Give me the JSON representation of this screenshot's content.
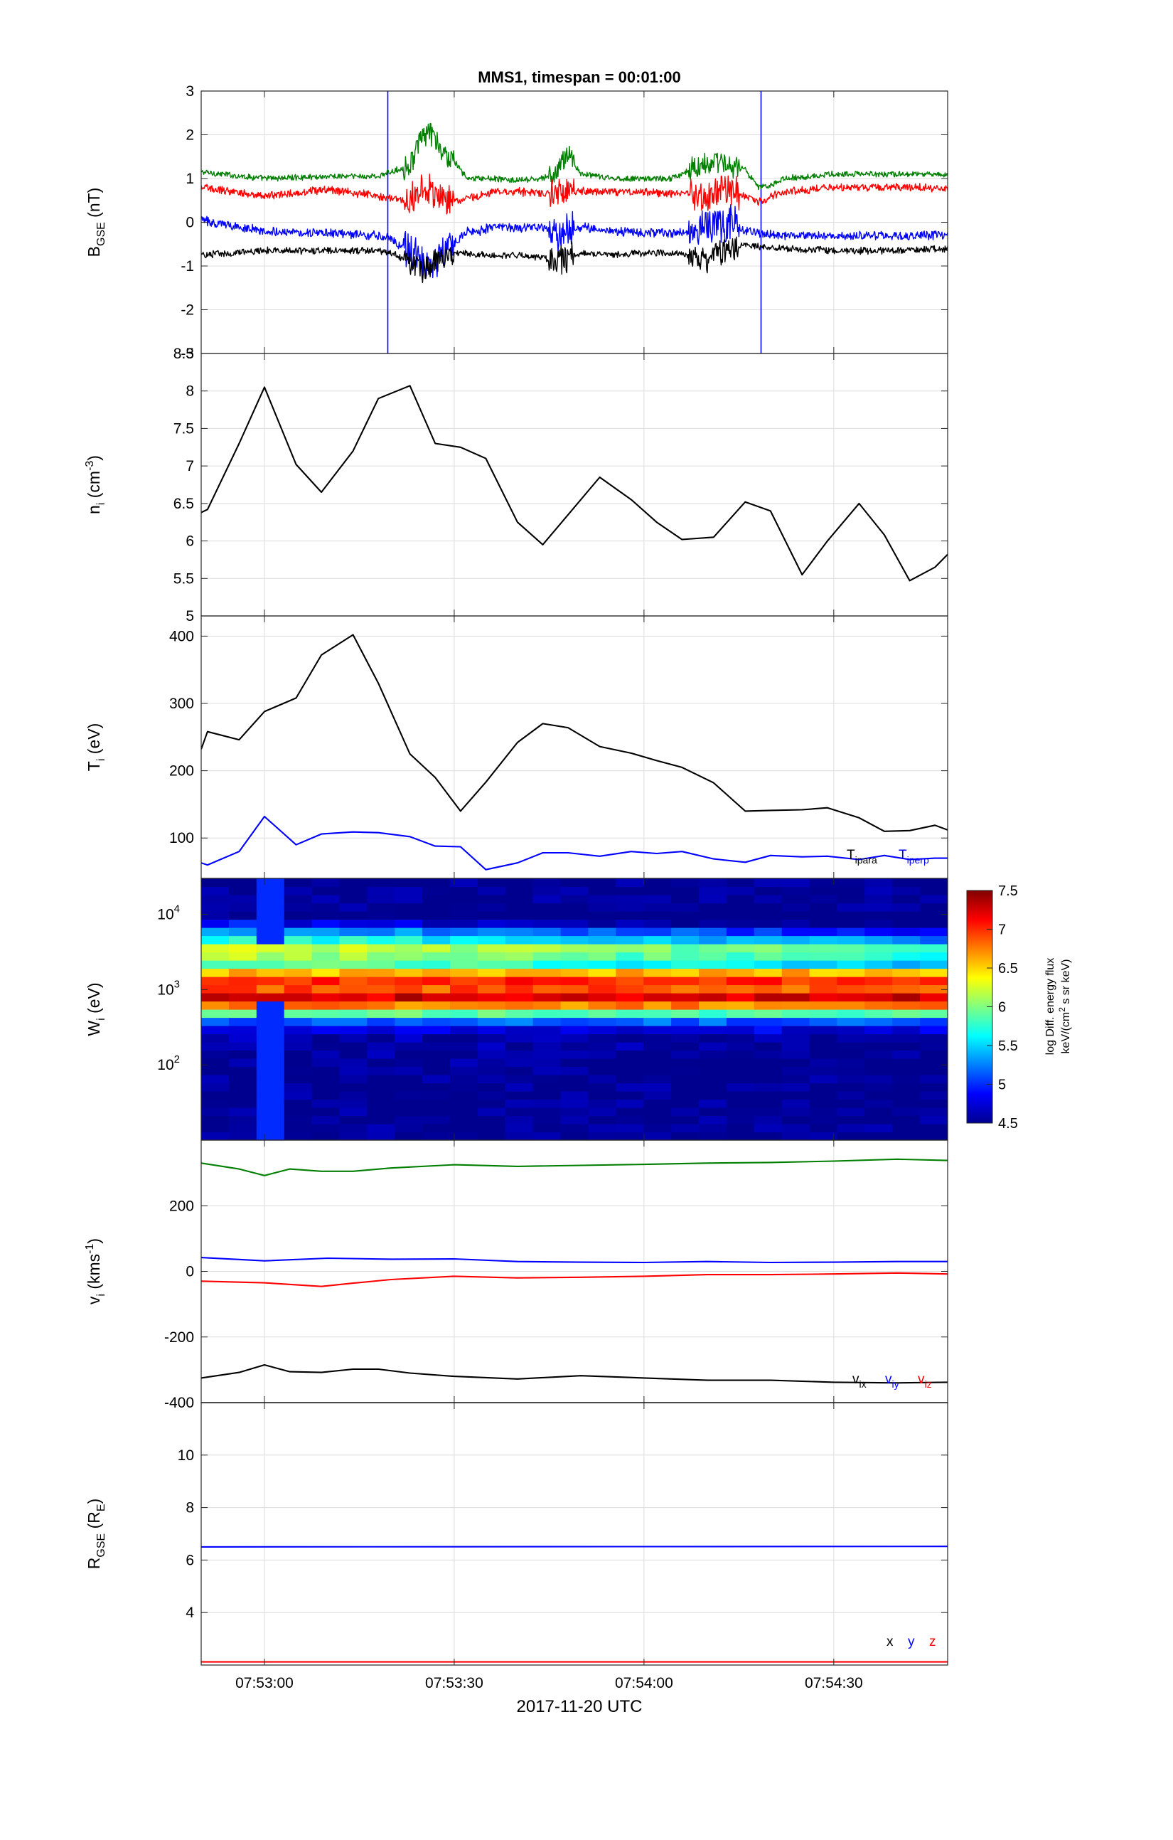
{
  "figure": {
    "title": "MMS1, timespan = 00:01:00",
    "xlabel": "2017-11-20 UTC",
    "x_tick_labels": [
      "07:53:00",
      "07:53:30",
      "07:54:00",
      "07:54:30"
    ],
    "x_tick_values": [
      10,
      40,
      70,
      100
    ],
    "x_range": [
      0,
      118
    ],
    "x_unit": "seconds after 07:52:50"
  },
  "chart_data": [
    {
      "id": "b",
      "type": "line",
      "ylabel": "B",
      "ylabel_sub": "GSE",
      "ylabel_unit": " (nT)",
      "ylim": [
        -3,
        3
      ],
      "yticks": [
        -3,
        -2,
        -1,
        0,
        1,
        2,
        3
      ],
      "ytick_labels": [
        "-3",
        "-2",
        "-1",
        "0",
        "1",
        "2",
        "3"
      ],
      "grid": true,
      "vlines": [
        {
          "x": 29.5,
          "color": "#0000ff"
        },
        {
          "x": 88.5,
          "color": "#0000ff"
        }
      ],
      "series": [
        {
          "color": "#007f00",
          "noise": 0.06,
          "x": [
            0,
            10,
            20,
            28,
            30,
            33,
            34,
            36,
            38,
            40,
            42,
            44,
            46,
            50,
            54,
            56,
            58,
            60,
            65,
            70,
            74,
            76,
            80,
            84,
            86,
            88,
            90,
            92,
            100,
            110,
            118
          ],
          "y": [
            1.15,
            1.0,
            1.05,
            1.05,
            1.15,
            1.3,
            1.7,
            2.1,
            1.6,
            1.4,
            1.0,
            1.0,
            1.0,
            0.95,
            1.0,
            1.1,
            1.6,
            1.1,
            1.0,
            1.0,
            1.0,
            1.1,
            1.4,
            1.3,
            1.2,
            0.8,
            0.85,
            1.0,
            1.1,
            1.1,
            1.1
          ]
        },
        {
          "color": "#ff0000",
          "noise": 0.08,
          "x": [
            0,
            10,
            20,
            28,
            30,
            33,
            35,
            37,
            40,
            42,
            44,
            46,
            50,
            54,
            57,
            60,
            65,
            70,
            75,
            80,
            84,
            86,
            88,
            92,
            100,
            110,
            118
          ],
          "y": [
            0.8,
            0.6,
            0.75,
            0.6,
            0.55,
            0.5,
            0.9,
            0.6,
            0.5,
            0.55,
            0.6,
            0.7,
            0.7,
            0.65,
            0.7,
            0.7,
            0.7,
            0.7,
            0.65,
            0.6,
            0.75,
            0.6,
            0.45,
            0.7,
            0.8,
            0.8,
            0.78
          ]
        },
        {
          "color": "#0000ff",
          "noise": 0.09,
          "x": [
            0,
            10,
            20,
            28,
            30,
            32,
            34,
            36,
            38,
            40,
            42,
            44,
            46,
            50,
            54,
            56,
            58,
            60,
            65,
            70,
            75,
            78,
            80,
            84,
            86,
            88,
            92,
            100,
            110,
            118
          ],
          "y": [
            0.05,
            -0.2,
            -0.25,
            -0.3,
            -0.4,
            -0.6,
            -0.8,
            -1.0,
            -0.8,
            -0.5,
            -0.2,
            -0.2,
            -0.1,
            -0.15,
            -0.1,
            -0.3,
            -0.2,
            -0.1,
            -0.2,
            -0.25,
            -0.25,
            -0.2,
            -0.1,
            0.0,
            -0.2,
            -0.25,
            -0.3,
            -0.3,
            -0.3,
            -0.3
          ]
        },
        {
          "color": "#000000",
          "noise": 0.07,
          "x": [
            0,
            10,
            20,
            28,
            30,
            33,
            35,
            37,
            40,
            42,
            44,
            46,
            50,
            54,
            56,
            58,
            60,
            65,
            70,
            75,
            78,
            80,
            82,
            84,
            86,
            88,
            92,
            100,
            110,
            118
          ],
          "y": [
            -0.75,
            -0.65,
            -0.65,
            -0.65,
            -0.7,
            -0.9,
            -1.1,
            -0.9,
            -0.7,
            -0.7,
            -0.75,
            -0.75,
            -0.75,
            -0.8,
            -0.9,
            -0.8,
            -0.7,
            -0.75,
            -0.7,
            -0.7,
            -0.8,
            -0.9,
            -0.75,
            -0.6,
            -0.5,
            -0.55,
            -0.6,
            -0.65,
            -0.65,
            -0.6
          ]
        }
      ],
      "legend": []
    },
    {
      "id": "n",
      "type": "line",
      "ylabel": "n",
      "ylabel_sub": "i",
      "ylabel_unit": " (cm",
      "ylabel_sup": "-3",
      "ylabel_end": ")",
      "ylim": [
        5,
        8.5
      ],
      "yticks": [
        5,
        5.5,
        6,
        6.5,
        7,
        7.5,
        8,
        8.5
      ],
      "ytick_labels": [
        "5",
        "5.5",
        "6",
        "6.5",
        "7",
        "7.5",
        "8",
        "8.5"
      ],
      "grid": true,
      "series": [
        {
          "color": "#000000",
          "x": [
            0,
            1,
            6,
            10,
            15,
            19,
            24,
            28,
            33,
            37,
            41,
            45,
            50,
            54,
            58,
            63,
            68,
            72,
            76,
            81,
            86,
            90,
            95,
            99,
            104,
            108,
            112,
            116,
            118
          ],
          "y": [
            6.38,
            6.42,
            7.3,
            8.05,
            7.02,
            6.65,
            7.2,
            7.9,
            8.07,
            7.3,
            7.25,
            7.1,
            6.25,
            5.95,
            6.35,
            6.85,
            6.55,
            6.25,
            6.02,
            6.05,
            6.52,
            6.4,
            5.55,
            6.0,
            6.5,
            6.08,
            5.47,
            5.65,
            5.82
          ]
        }
      ],
      "legend": []
    },
    {
      "id": "t",
      "type": "line",
      "ylabel": "T",
      "ylabel_sub": "i",
      "ylabel_unit": " (eV)",
      "ylim": [
        40,
        430
      ],
      "yticks": [
        100,
        200,
        300,
        400
      ],
      "ytick_labels": [
        "100",
        "200",
        "300",
        "400"
      ],
      "grid": true,
      "series": [
        {
          "name": "T",
          "name_sub": "ipara",
          "color": "#000000",
          "x": [
            0,
            1,
            6,
            10,
            15,
            19,
            24,
            28,
            33,
            37,
            41,
            45,
            50,
            54,
            58,
            63,
            68,
            72,
            76,
            81,
            86,
            90,
            95,
            99,
            104,
            108,
            112,
            116,
            118
          ],
          "y": [
            232,
            258,
            246,
            288,
            308,
            372,
            402,
            330,
            225,
            190,
            140,
            183,
            242,
            270,
            264,
            236,
            226,
            215,
            205,
            182,
            140,
            141,
            142,
            145,
            130,
            110,
            111,
            119,
            112
          ]
        },
        {
          "name": "T",
          "name_sub": "iperp",
          "color": "#0000ff",
          "x": [
            0,
            1,
            6,
            10,
            15,
            19,
            24,
            28,
            33,
            37,
            41,
            45,
            50,
            54,
            58,
            63,
            68,
            72,
            76,
            81,
            86,
            90,
            95,
            99,
            104,
            108,
            112,
            116,
            118
          ],
          "y": [
            63,
            60,
            80,
            132,
            90,
            106,
            109,
            108,
            102,
            88,
            87,
            53,
            63,
            78,
            78,
            73,
            80,
            77,
            80,
            69,
            64,
            74,
            72,
            73,
            68,
            74,
            68,
            70,
            70
          ]
        }
      ],
      "legend": [
        {
          "text": "T",
          "sub": "ipara",
          "color": "#000000"
        },
        {
          "text": "T",
          "sub": "iperp",
          "color": "#0000ff"
        }
      ]
    },
    {
      "id": "w",
      "type": "heatmap",
      "ylabel": "W",
      "ylabel_sub": "i",
      "ylabel_unit": " (eV)",
      "yscale": "log",
      "ylim": [
        10,
        30000
      ],
      "ytick_labels": [
        "10",
        "10",
        "10"
      ],
      "ytick_sups": [
        "2",
        "3",
        "4"
      ],
      "ytick_values": [
        100,
        1000,
        10000
      ],
      "time_bins": 27,
      "energy_bins": 32,
      "colorbar": {
        "range": [
          4.5,
          7.5
        ],
        "ticks": [
          4.5,
          5,
          5.5,
          6,
          6.5,
          7,
          7.5
        ],
        "tick_labels": [
          "4.5",
          "5",
          "5.5",
          "6",
          "6.5",
          "7",
          "7.5"
        ],
        "label_line1": "log Diff. energy flux",
        "label_line2": "keV/(cm",
        "label_sup": "2",
        "label_line2_end": " s sr keV)"
      },
      "profile": {
        "log_e": [
          1.0,
          1.5,
          2.0,
          2.4,
          2.55,
          2.65,
          2.75,
          2.85,
          2.95,
          3.05,
          3.15,
          3.25,
          3.35,
          3.45,
          3.55,
          3.65,
          3.75,
          3.85,
          3.95,
          4.05,
          4.5
        ],
        "level": [
          4.5,
          4.5,
          4.5,
          4.6,
          5.0,
          5.6,
          6.4,
          7.2,
          7.3,
          6.6,
          7.2,
          6.4,
          5.9,
          6.2,
          6.3,
          5.8,
          5.5,
          5.0,
          4.6,
          4.5,
          4.5
        ]
      }
    },
    {
      "id": "v",
      "type": "line",
      "ylabel": "v",
      "ylabel_sub": "i",
      "ylabel_unit": " (kms",
      "ylabel_sup": "-1",
      "ylabel_end": ")",
      "ylim": [
        -400,
        400
      ],
      "yticks": [
        -400,
        -200,
        0,
        200
      ],
      "ytick_labels": [
        "-400",
        "-200",
        "0",
        "200"
      ],
      "grid": true,
      "series": [
        {
          "name": "v",
          "name_sub": "ix",
          "color": "#000000",
          "x": [
            0,
            6,
            10,
            14,
            19,
            24,
            28,
            33,
            40,
            50,
            60,
            70,
            80,
            90,
            100,
            110,
            118
          ],
          "y": [
            -325,
            -308,
            -285,
            -306,
            -308,
            -298,
            -298,
            -310,
            -320,
            -328,
            -318,
            -325,
            -332,
            -332,
            -338,
            -340,
            -338
          ]
        },
        {
          "name": "v",
          "name_sub": "iy",
          "color": "#0000ff",
          "x": [
            0,
            10,
            20,
            30,
            40,
            50,
            60,
            70,
            80,
            90,
            100,
            110,
            118
          ],
          "y": [
            42,
            32,
            40,
            37,
            38,
            30,
            28,
            27,
            30,
            27,
            28,
            30,
            30
          ]
        },
        {
          "name": "v",
          "name_sub": "iz",
          "color": "#ff0000",
          "x": [
            0,
            10,
            19,
            24,
            30,
            40,
            50,
            60,
            70,
            80,
            90,
            100,
            110,
            118
          ],
          "y": [
            -30,
            -35,
            -46,
            -36,
            -25,
            -15,
            -20,
            -18,
            -15,
            -10,
            -10,
            -8,
            -5,
            -8
          ]
        },
        {
          "color": "#007f00",
          "x": [
            0,
            6,
            10,
            14,
            19,
            24,
            30,
            40,
            50,
            60,
            70,
            80,
            90,
            100,
            110,
            118
          ],
          "y": [
            330,
            312,
            292,
            312,
            305,
            305,
            315,
            325,
            320,
            323,
            326,
            330,
            332,
            336,
            342,
            338
          ]
        }
      ],
      "legend": [
        {
          "text": "v",
          "sub": "ix",
          "color": "#000000"
        },
        {
          "text": "v",
          "sub": "iy",
          "color": "#0000ff"
        },
        {
          "text": "v",
          "sub": "iz",
          "color": "#ff0000"
        }
      ]
    },
    {
      "id": "r",
      "type": "line",
      "ylabel": "R",
      "ylabel_sub": "GSE",
      "ylabel_unit": " (R",
      "ylabel_sub2": "E",
      "ylabel_end": ")",
      "ylim": [
        2,
        12
      ],
      "yticks": [
        4,
        6,
        8,
        10
      ],
      "ytick_labels": [
        "4",
        "6",
        "8",
        "10"
      ],
      "grid": true,
      "series": [
        {
          "name": "x",
          "color": "#000000",
          "x": [
            0,
            118
          ],
          "y": [
            12.0,
            12.0
          ]
        },
        {
          "name": "y",
          "color": "#0000ff",
          "x": [
            0,
            118
          ],
          "y": [
            6.5,
            6.52
          ]
        },
        {
          "name": "z",
          "color": "#ff0000",
          "x": [
            0,
            118
          ],
          "y": [
            2.12,
            2.12
          ]
        }
      ],
      "legend": [
        {
          "text": "x",
          "color": "#000000"
        },
        {
          "text": "y",
          "color": "#0000ff"
        },
        {
          "text": "z",
          "color": "#ff0000"
        }
      ]
    }
  ]
}
